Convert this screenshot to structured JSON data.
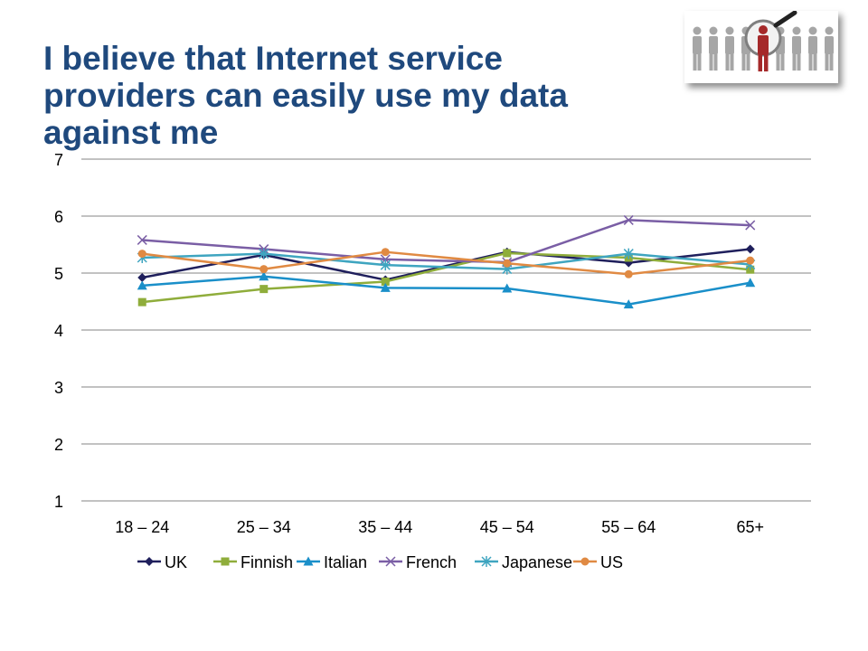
{
  "slide": {
    "title_lines": [
      "I believe that Internet service",
      "providers can easily use my data",
      "against me"
    ]
  },
  "logo": {
    "icon": "people-search-magnifier-icon"
  },
  "chart_data": {
    "type": "line",
    "categories": [
      "18 – 24",
      "25 – 34",
      "35 – 44",
      "45 – 54",
      "55 – 64",
      "65+"
    ],
    "ylim": [
      1,
      7
    ],
    "yticks": [
      1,
      2,
      3,
      4,
      5,
      6,
      7
    ],
    "grid": true,
    "legend_position": "bottom",
    "series": [
      {
        "name": "UK",
        "color": "#1f1f5c",
        "marker": "diamond",
        "values": [
          4.92,
          5.32,
          4.88,
          5.37,
          5.18,
          5.42
        ]
      },
      {
        "name": "Finnish",
        "color": "#8fad3b",
        "marker": "square",
        "values": [
          4.49,
          4.72,
          4.85,
          5.35,
          5.27,
          5.06
        ]
      },
      {
        "name": "Italian",
        "color": "#1a8fc9",
        "marker": "triangle",
        "values": [
          4.78,
          4.94,
          4.74,
          4.73,
          4.45,
          4.83
        ]
      },
      {
        "name": "French",
        "color": "#7a5ea5",
        "marker": "x",
        "values": [
          5.58,
          5.42,
          5.24,
          5.19,
          5.93,
          5.84
        ]
      },
      {
        "name": "Japanese",
        "color": "#3fa5c0",
        "marker": "star",
        "values": [
          5.27,
          5.34,
          5.14,
          5.07,
          5.34,
          5.15
        ]
      },
      {
        "name": "US",
        "color": "#e08a43",
        "marker": "circle",
        "values": [
          5.34,
          5.07,
          5.37,
          5.17,
          4.98,
          5.22
        ]
      }
    ]
  }
}
